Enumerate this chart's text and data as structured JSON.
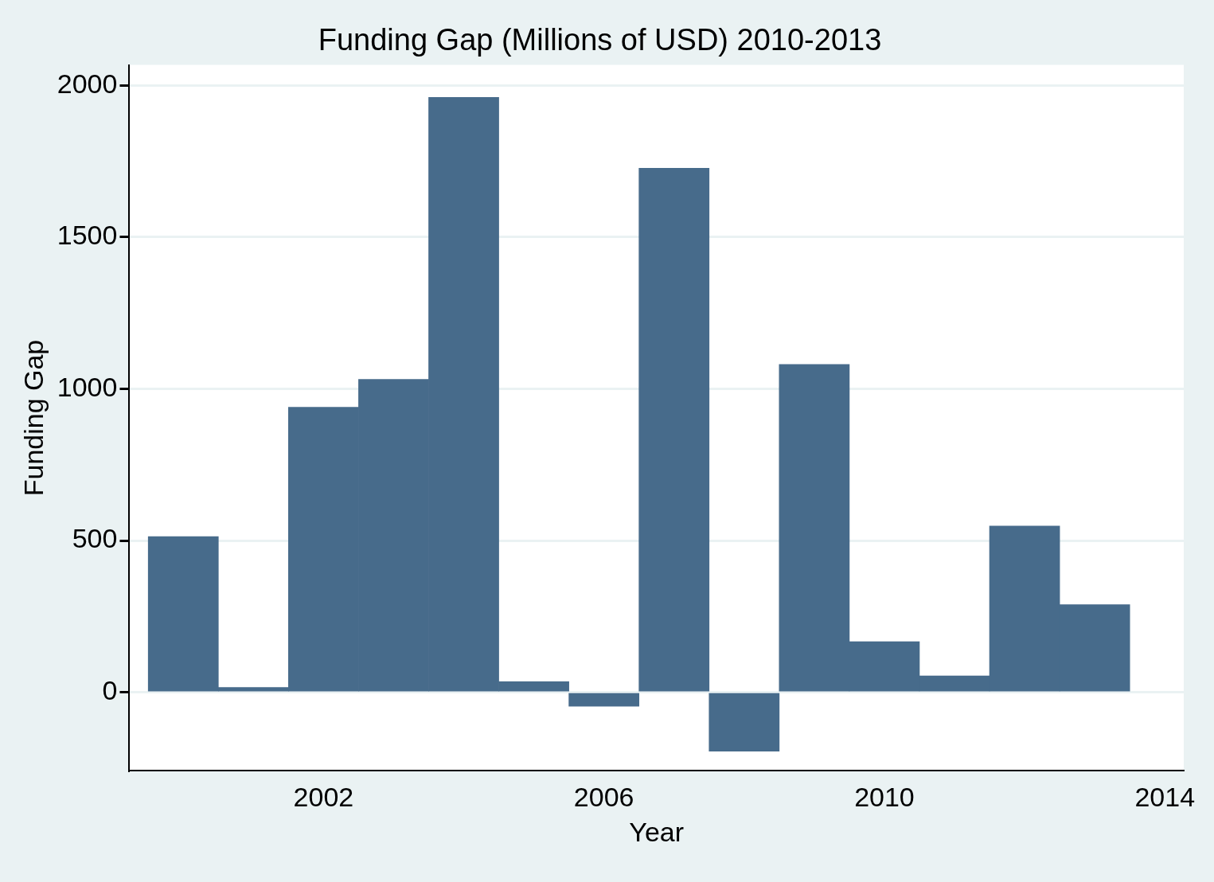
{
  "chart_data": {
    "type": "bar",
    "title": "Funding Gap (Millions of USD) 2010-2013",
    "xlabel": "Year",
    "ylabel": "Funding Gap",
    "x": [
      2000,
      2001,
      2002,
      2003,
      2004,
      2005,
      2006,
      2007,
      2008,
      2009,
      2010,
      2011,
      2012,
      2013
    ],
    "values": [
      513,
      16,
      939,
      1031,
      1960,
      35,
      -46,
      1727,
      -194,
      1080,
      167,
      54,
      548,
      289
    ],
    "color": "#476b8b",
    "xlim": [
      1999.23,
      2014.27
    ],
    "xticks": [
      2002,
      2006,
      2010,
      2014
    ],
    "ylim": [
      -259,
      2067
    ],
    "yticks": [
      0,
      500,
      1000,
      1500,
      2000
    ],
    "grid": "y",
    "legend": false
  }
}
